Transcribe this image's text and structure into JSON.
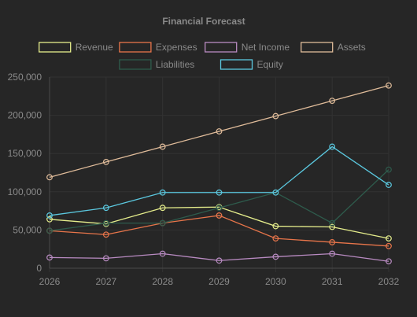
{
  "chart_data": {
    "type": "line",
    "title": "Financial Forecast",
    "x": [
      "2026",
      "2027",
      "2028",
      "2029",
      "2030",
      "2031",
      "2032"
    ],
    "ylim": [
      0,
      250000
    ],
    "yticks": [
      0,
      50000,
      100000,
      150000,
      200000,
      250000
    ],
    "ytick_labels": [
      "0",
      "50,000",
      "100,000",
      "150,000",
      "200,000",
      "250,000"
    ],
    "grid": true,
    "legend_position": "top",
    "series": [
      {
        "name": "Revenue",
        "color": "#e6ee8c",
        "values": [
          64000,
          58000,
          79000,
          80000,
          55000,
          54000,
          39000
        ]
      },
      {
        "name": "Expenses",
        "color": "#e8754a",
        "values": [
          49000,
          44000,
          59000,
          69000,
          39000,
          34000,
          29000
        ]
      },
      {
        "name": "Net Income",
        "color": "#b98bc2",
        "values": [
          14000,
          13000,
          19000,
          10000,
          15000,
          19000,
          9000
        ]
      },
      {
        "name": "Assets",
        "color": "#e0bc9a",
        "values": [
          119000,
          139000,
          159000,
          179000,
          199000,
          219000,
          239000
        ]
      },
      {
        "name": "Liabilities",
        "color": "#2e5b4c",
        "values": [
          49000,
          59000,
          59000,
          79000,
          99000,
          59000,
          129000
        ]
      },
      {
        "name": "Equity",
        "color": "#5bc8df",
        "values": [
          69000,
          79000,
          99000,
          99000,
          99000,
          159000,
          109000
        ]
      }
    ]
  }
}
